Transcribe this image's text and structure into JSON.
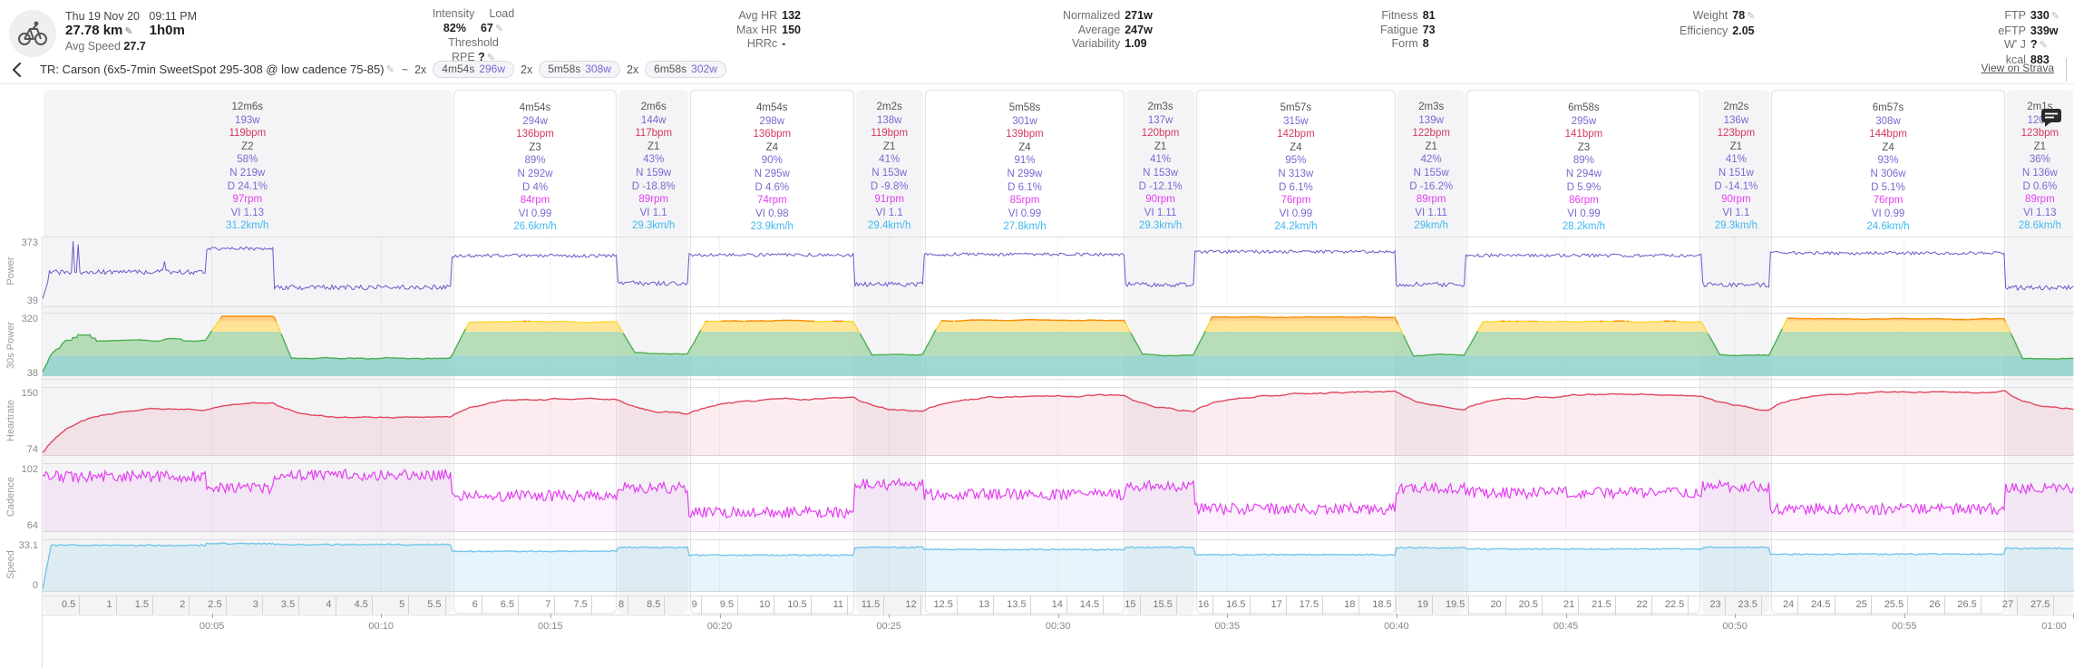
{
  "header": {
    "date": "Thu 19 Nov 20",
    "time": "09:11 PM",
    "distance": "27.78 km",
    "duration": "1h0m",
    "avg_speed_label": "Avg Speed",
    "avg_speed": "27.7",
    "intensity_label": "Intensity",
    "load_label": "Load",
    "intensity": "82%",
    "load": "67",
    "threshold_label": "Threshold",
    "rpe_label": "RPE",
    "rpe_value": "?",
    "groups": {
      "hr": [
        [
          "Avg HR",
          "132"
        ],
        [
          "Max HR",
          "150"
        ],
        [
          "HRRc",
          "-"
        ]
      ],
      "power": [
        [
          "Normalized",
          "271w"
        ],
        [
          "Average",
          "247w"
        ],
        [
          "Variability",
          "1.09"
        ]
      ],
      "fitness": [
        [
          "Fitness",
          "81"
        ],
        [
          "Fatigue",
          "73"
        ],
        [
          "Form",
          "8"
        ]
      ],
      "weight": [
        [
          "Weight",
          "78",
          "edit"
        ],
        [
          "Efficiency",
          "2.05"
        ]
      ],
      "ftp": [
        [
          "FTP",
          "330",
          "edit"
        ],
        [
          "eFTP",
          "339w"
        ],
        [
          "W' J",
          "?",
          "edit"
        ],
        [
          "kcal",
          "883"
        ]
      ]
    }
  },
  "title": {
    "text": "TR: Carson (6x5-7min SweetSpot 295-308 @ low cadence 75-85)",
    "tilde": "~",
    "chips": [
      {
        "mult": "2x",
        "dur": "4m54s",
        "w": "296w"
      },
      {
        "mult": "2x",
        "dur": "5m58s",
        "w": "308w"
      },
      {
        "mult": "2x",
        "dur": "6m58s",
        "w": "302w"
      }
    ],
    "strava": "View on Strava"
  },
  "intervals": [
    {
      "dur": "12m6s",
      "secs": 726,
      "w": "193w",
      "bpm": "119bpm",
      "zone": "Z2",
      "pct": "58%",
      "n": "N 219w",
      "d": "D 24.1%",
      "rpm": "97rpm",
      "vi": "VI 1.13",
      "kmh": "31.2km/h",
      "work": false
    },
    {
      "dur": "4m54s",
      "secs": 294,
      "w": "294w",
      "bpm": "136bpm",
      "zone": "Z3",
      "pct": "89%",
      "n": "N 292w",
      "d": "D 4%",
      "rpm": "84rpm",
      "vi": "VI 0.99",
      "kmh": "26.6km/h",
      "work": true
    },
    {
      "dur": "2m6s",
      "secs": 126,
      "w": "144w",
      "bpm": "117bpm",
      "zone": "Z1",
      "pct": "43%",
      "n": "N 159w",
      "d": "D -18.8%",
      "rpm": "89rpm",
      "vi": "VI 1.1",
      "kmh": "29.3km/h",
      "work": false
    },
    {
      "dur": "4m54s",
      "secs": 294,
      "w": "298w",
      "bpm": "136bpm",
      "zone": "Z4",
      "pct": "90%",
      "n": "N 295w",
      "d": "D 4.6%",
      "rpm": "74rpm",
      "vi": "VI 0.98",
      "kmh": "23.9km/h",
      "work": true
    },
    {
      "dur": "2m2s",
      "secs": 122,
      "w": "138w",
      "bpm": "119bpm",
      "zone": "Z1",
      "pct": "41%",
      "n": "N 153w",
      "d": "D -9.8%",
      "rpm": "91rpm",
      "vi": "VI 1.1",
      "kmh": "29.4km/h",
      "work": false
    },
    {
      "dur": "5m58s",
      "secs": 358,
      "w": "301w",
      "bpm": "139bpm",
      "zone": "Z4",
      "pct": "91%",
      "n": "N 299w",
      "d": "D 6.1%",
      "rpm": "85rpm",
      "vi": "VI 0.99",
      "kmh": "27.8km/h",
      "work": true
    },
    {
      "dur": "2m3s",
      "secs": 123,
      "w": "137w",
      "bpm": "120bpm",
      "zone": "Z1",
      "pct": "41%",
      "n": "N 153w",
      "d": "D -12.1%",
      "rpm": "90rpm",
      "vi": "VI 1.11",
      "kmh": "29.3km/h",
      "work": false
    },
    {
      "dur": "5m57s",
      "secs": 357,
      "w": "315w",
      "bpm": "142bpm",
      "zone": "Z4",
      "pct": "95%",
      "n": "N 313w",
      "d": "D 6.1%",
      "rpm": "76rpm",
      "vi": "VI 0.99",
      "kmh": "24.2km/h",
      "work": true
    },
    {
      "dur": "2m3s",
      "secs": 123,
      "w": "139w",
      "bpm": "122bpm",
      "zone": "Z1",
      "pct": "42%",
      "n": "N 155w",
      "d": "D -16.2%",
      "rpm": "89rpm",
      "vi": "VI 1.11",
      "kmh": "29km/h",
      "work": false
    },
    {
      "dur": "6m58s",
      "secs": 418,
      "w": "295w",
      "bpm": "141bpm",
      "zone": "Z3",
      "pct": "89%",
      "n": "N 294w",
      "d": "D 5.9%",
      "rpm": "86rpm",
      "vi": "VI 0.99",
      "kmh": "28.2km/h",
      "work": true
    },
    {
      "dur": "2m2s",
      "secs": 122,
      "w": "136w",
      "bpm": "123bpm",
      "zone": "Z1",
      "pct": "41%",
      "n": "N 151w",
      "d": "D -14.1%",
      "rpm": "90rpm",
      "vi": "VI 1.1",
      "kmh": "29.3km/h",
      "work": false
    },
    {
      "dur": "6m57s",
      "secs": 417,
      "w": "308w",
      "bpm": "144bpm",
      "zone": "Z4",
      "pct": "93%",
      "n": "N 306w",
      "d": "D 5.1%",
      "rpm": "76rpm",
      "vi": "VI 0.99",
      "kmh": "24.6km/h",
      "work": true
    },
    {
      "dur": "2m1s",
      "secs": 121,
      "w": "120w",
      "bpm": "123bpm",
      "zone": "Z1",
      "pct": "36%",
      "n": "N 136w",
      "d": "D 0.6%",
      "rpm": "89rpm",
      "vi": "VI 1.13",
      "kmh": "28.6km/h",
      "work": false
    }
  ],
  "charts": [
    {
      "key": "power",
      "label": "Power",
      "ymax": "373",
      "ymin": "39"
    },
    {
      "key": "p30",
      "label": "30s Power",
      "ymax": "320",
      "ymin": "38"
    },
    {
      "key": "hr",
      "label": "Heartrate",
      "ymax": "150",
      "ymin": "74"
    },
    {
      "key": "cadence",
      "label": "Cadence",
      "ymax": "102",
      "ymin": "64"
    },
    {
      "key": "speed",
      "label": "Speed",
      "ymax": "33.1",
      "ymin": "0"
    }
  ],
  "colors": {
    "power": "#6a5ac8",
    "hr": "#e0485f",
    "hr_fill": "rgba(224,72,95,0.10)",
    "cadence": "#e33ff0",
    "cadence_fill": "rgba(227,63,240,0.07)",
    "speed": "#74c6e9",
    "speed_fill": "rgba(116,198,233,0.18)",
    "zone_teal": "#80cbc4",
    "zone_green": "#a5d6a7",
    "zone_yellow": "#ffe082",
    "zone_orange": "#ffcc80",
    "stroke_green": "#4caf50",
    "stroke_yellow": "#fdd835",
    "stroke_orange": "#fb8c00"
  },
  "chart_data": {
    "type": "line",
    "total_seconds": 3601,
    "total_km": 27.78,
    "x_axis": {
      "time_ticks": [
        "00:05",
        "00:10",
        "00:15",
        "00:20",
        "00:25",
        "00:30",
        "00:35",
        "00:40",
        "00:45",
        "00:50",
        "00:55",
        "01:00"
      ],
      "tick_interval_seconds": 300,
      "distance_tick_start_km": 0.5,
      "distance_tick_step_km": 0.5,
      "distance_tick_end_km": 27.5
    },
    "series_domains": {
      "power": [
        39,
        373
      ],
      "power_30s": [
        38,
        320
      ],
      "heartrate": [
        74,
        150
      ],
      "cadence": [
        64,
        102
      ],
      "speed": [
        0,
        33.1
      ]
    },
    "zone_bands_w": [
      [
        38,
        135
      ],
      [
        135,
        248
      ],
      [
        248,
        297
      ],
      [
        297,
        330
      ]
    ],
    "segments": [
      {
        "t0": 0,
        "t1": 290,
        "power": 205,
        "cadence": 96,
        "speed": 30.8,
        "hr": 128,
        "spiky": true
      },
      {
        "t0": 290,
        "t1": 410,
        "power": 332,
        "cadence": 89,
        "speed": 32.0,
        "hr": 137
      },
      {
        "t0": 410,
        "t1": 726,
        "power": 122,
        "cadence": 97,
        "speed": 31.3,
        "hr": 116
      },
      {
        "t0": 726,
        "t1": 1020,
        "power": 294,
        "cadence": 84,
        "speed": 26.6,
        "hr": 141
      },
      {
        "t0": 1020,
        "t1": 1146,
        "power": 144,
        "cadence": 89,
        "speed": 29.3,
        "hr": 121
      },
      {
        "t0": 1146,
        "t1": 1440,
        "power": 298,
        "cadence": 74,
        "speed": 23.9,
        "hr": 141
      },
      {
        "t0": 1440,
        "t1": 1562,
        "power": 138,
        "cadence": 91,
        "speed": 29.4,
        "hr": 122
      },
      {
        "t0": 1562,
        "t1": 1920,
        "power": 301,
        "cadence": 85,
        "speed": 27.8,
        "hr": 143
      },
      {
        "t0": 1920,
        "t1": 2043,
        "power": 137,
        "cadence": 90,
        "speed": 29.3,
        "hr": 123
      },
      {
        "t0": 2043,
        "t1": 2400,
        "power": 315,
        "cadence": 76,
        "speed": 24.2,
        "hr": 147
      },
      {
        "t0": 2400,
        "t1": 2523,
        "power": 139,
        "cadence": 89,
        "speed": 29.0,
        "hr": 124
      },
      {
        "t0": 2523,
        "t1": 2941,
        "power": 295,
        "cadence": 86,
        "speed": 28.2,
        "hr": 145
      },
      {
        "t0": 2941,
        "t1": 3063,
        "power": 136,
        "cadence": 90,
        "speed": 29.3,
        "hr": 125
      },
      {
        "t0": 3063,
        "t1": 3480,
        "power": 308,
        "cadence": 76,
        "speed": 24.6,
        "hr": 149
      },
      {
        "t0": 3480,
        "t1": 3601,
        "power": 120,
        "cadence": 89,
        "speed": 28.6,
        "hr": 126
      }
    ]
  }
}
